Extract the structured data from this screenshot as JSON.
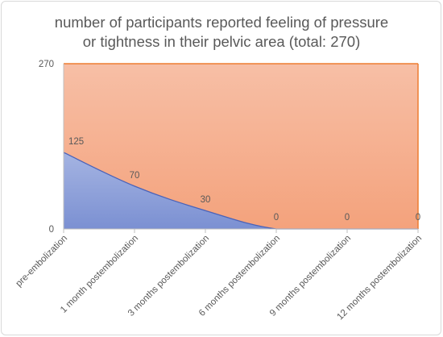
{
  "chart_data": {
    "type": "area",
    "title_lines": [
      "number of participants reported feeling of pressure",
      "or tightness in their pelvic area (total: 270)"
    ],
    "xlabel": "",
    "ylabel": "",
    "categories": [
      "pre-embolization",
      "1 month postembolization",
      "3 months postembolization",
      "6 months postembolization",
      "9 months postembolization",
      "12 months postembolization"
    ],
    "series": [
      {
        "values": [
          125,
          70,
          30,
          0,
          0,
          0
        ],
        "color": "#8ea1d8"
      }
    ],
    "total_series": {
      "values": [
        270,
        270,
        270,
        270,
        270,
        270
      ],
      "color": "#f5ad8c",
      "line_color": "#ed7d31"
    },
    "data_labels": [
      "125",
      "70",
      "30",
      "0",
      "0",
      "0"
    ],
    "y_ticks": [
      "0",
      "270"
    ],
    "ylim": [
      0,
      270
    ],
    "grid": false,
    "legend": "none"
  }
}
